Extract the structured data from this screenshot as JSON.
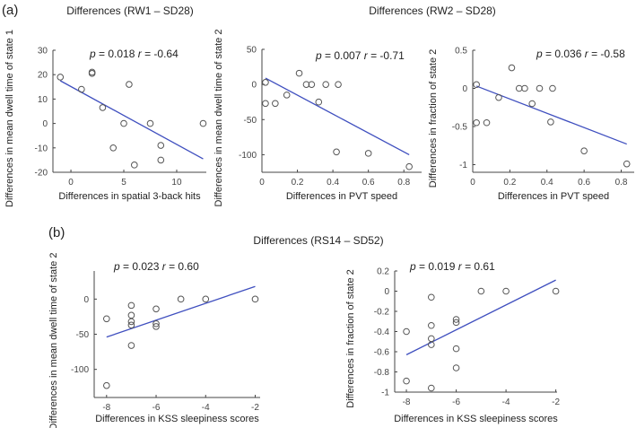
{
  "panel_labels": [
    "(a)",
    "(b)"
  ],
  "group_titles": [
    "Differences (RW1 – SD28)",
    "Differences (RW2 – SD28)",
    "Differences (RS14 – SD52)"
  ],
  "colors": {
    "fit_line": "#3f4fbf",
    "marker": "#555555",
    "axis": "#444444"
  },
  "chart_data": [
    {
      "type": "scatter",
      "annotation_p": "0.018",
      "annotation_r": "-0.64",
      "xlabel": "Differences in spatial 3-back hits",
      "ylabel": "Differences in mean dwell time of state 1",
      "xlim": [
        -1.7,
        12.8
      ],
      "ylim": [
        -20,
        30
      ],
      "xticks": [
        0,
        5,
        10
      ],
      "yticks": [
        -20,
        -10,
        0,
        10,
        20,
        30
      ],
      "x": [
        -1,
        1,
        2,
        2,
        3,
        5,
        5.5,
        4,
        6,
        7.5,
        8.5,
        8.5,
        12.5
      ],
      "y": [
        19,
        14,
        20.5,
        21,
        6.5,
        0,
        16,
        -10,
        -17,
        0,
        -9,
        -15,
        0
      ],
      "fit": {
        "x": [
          -1,
          12.5
        ],
        "y": [
          17.5,
          -14.5
        ]
      }
    },
    {
      "type": "scatter",
      "annotation_p": "0.007",
      "annotation_r": "-0.71",
      "xlabel": "Differences in PVT speed",
      "ylabel": "Differences in mean dwell time of state 2",
      "xlim": [
        0,
        0.9
      ],
      "ylim": [
        -125,
        50
      ],
      "xticks": [
        0,
        0.2,
        0.4,
        0.6,
        0.8
      ],
      "yticks": [
        -100,
        -50,
        0,
        50
      ],
      "x": [
        0.02,
        0.02,
        0.075,
        0.14,
        0.21,
        0.25,
        0.28,
        0.32,
        0.36,
        0.43,
        0.42,
        0.6,
        0.83
      ],
      "y": [
        3,
        -27,
        -27,
        -15,
        16,
        0,
        0,
        -25,
        0,
        0,
        -96,
        -98,
        -117
      ],
      "fit": {
        "x": [
          0.02,
          0.83
        ],
        "y": [
          9,
          -100
        ]
      }
    },
    {
      "type": "scatter",
      "annotation_p": "0.036",
      "annotation_r": "-0.58",
      "xlabel": "Differences in PVT speed",
      "ylabel": "Differences in fraction of state 2",
      "xlim": [
        0,
        0.87
      ],
      "ylim": [
        -1.1,
        0.5
      ],
      "xticks": [
        0,
        0.2,
        0.4,
        0.6,
        0.8
      ],
      "yticks": [
        -1,
        -0.5,
        0,
        0.5
      ],
      "x": [
        0.02,
        0.02,
        0.075,
        0.14,
        0.21,
        0.25,
        0.28,
        0.32,
        0.36,
        0.43,
        0.42,
        0.6,
        0.83
      ],
      "y": [
        0.05,
        -0.45,
        -0.45,
        -0.12,
        0.27,
        0,
        0,
        -0.2,
        0,
        0,
        -0.44,
        -0.82,
        -0.99
      ],
      "fit": {
        "x": [
          0.02,
          0.83
        ],
        "y": [
          0.03,
          -0.73
        ]
      }
    },
    {
      "type": "scatter",
      "annotation_p": "0.023",
      "annotation_r": "0.60",
      "xlabel": "Differences in KSS sleepiness scores",
      "ylabel": "Differences in mean dwell time of state 2",
      "xlim": [
        -8.5,
        -1.8
      ],
      "ylim": [
        -140,
        40
      ],
      "xticks": [
        -8,
        -6,
        -4,
        -2
      ],
      "yticks": [
        -100,
        -50,
        0
      ],
      "x": [
        -8,
        -8,
        -7,
        -7,
        -7,
        -7,
        -7,
        -6,
        -6,
        -6,
        -5,
        -4,
        -2
      ],
      "y": [
        -28,
        -123,
        -9,
        -23,
        -32,
        -37,
        -66,
        -14,
        -35,
        -39,
        0,
        0,
        0
      ],
      "fit": {
        "x": [
          -8,
          -2
        ],
        "y": [
          -54,
          18
        ]
      }
    },
    {
      "type": "scatter",
      "annotation_p": "0.019",
      "annotation_r": "0.61",
      "xlabel": "Differences in KSS sleepiness scores",
      "ylabel": "Differences in fraction of state 2",
      "xlim": [
        -8.47,
        -1.95
      ],
      "ylim": [
        -1,
        0.2
      ],
      "xticks": [
        -8,
        -6,
        -4,
        -2
      ],
      "yticks": [
        -1,
        -0.8,
        -0.6,
        -0.4,
        -0.2,
        0,
        0.2
      ],
      "x": [
        -8,
        -8,
        -7,
        -7,
        -7,
        -7,
        -7,
        -6,
        -6,
        -6,
        -6,
        -5,
        -4,
        -2
      ],
      "y": [
        -0.4,
        -0.89,
        -0.06,
        -0.34,
        -0.47,
        -0.53,
        -0.96,
        -0.28,
        -0.31,
        -0.57,
        -0.76,
        0,
        0,
        0
      ],
      "fit": {
        "x": [
          -8,
          -2
        ],
        "y": [
          -0.63,
          0.11
        ]
      }
    }
  ]
}
